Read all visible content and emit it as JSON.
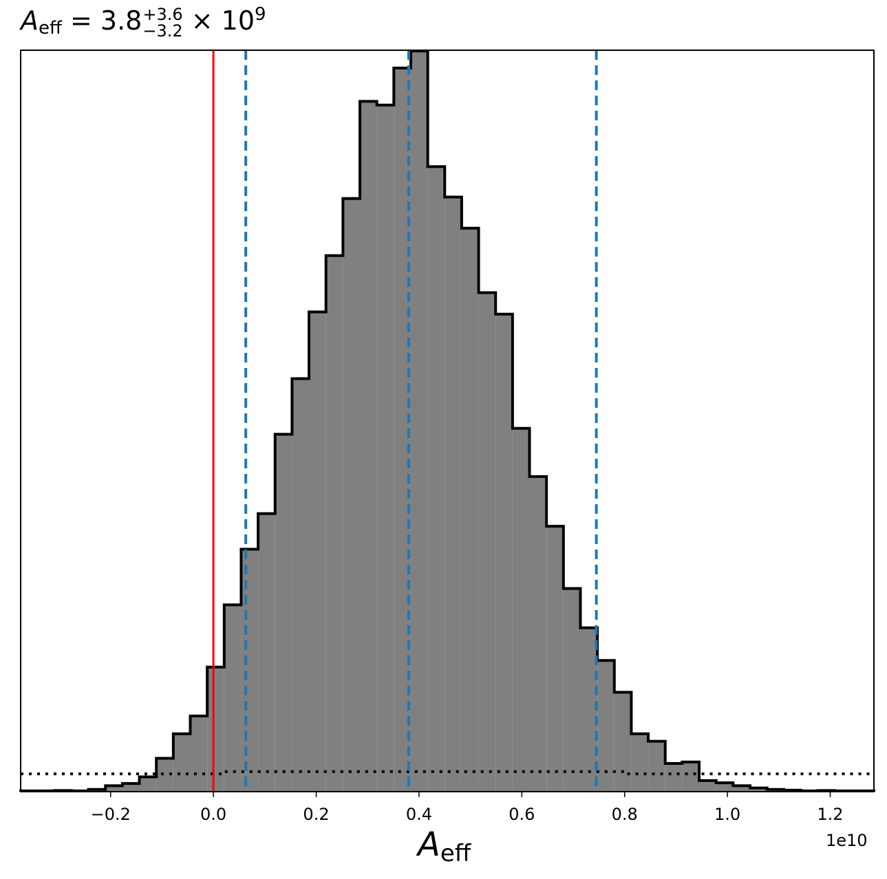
{
  "title": {
    "var": "A",
    "sub": "eff",
    "eq": " = 3.8",
    "sup": "+3.6",
    "subscript": "−3.2",
    "times": " × 10",
    "exp": "9"
  },
  "xlabel": {
    "var": "A",
    "sub": "eff"
  },
  "offset_text": "1e10",
  "chart_data": {
    "type": "histogram",
    "x_scale": 10000000000.0,
    "xlim": [
      -0.375,
      1.285
    ],
    "ylim": [
      0,
      1
    ],
    "xticks": [
      -0.2,
      0.0,
      0.2,
      0.4,
      0.6,
      0.8,
      1.0,
      1.2
    ],
    "xtick_labels": [
      "−0.2",
      "0.0",
      "0.2",
      "0.4",
      "0.6",
      "0.8",
      "1.0",
      "1.2"
    ],
    "bin_edges": [
      -0.375,
      -0.342,
      -0.309,
      -0.276,
      -0.243,
      -0.21,
      -0.177,
      -0.144,
      -0.111,
      -0.078,
      -0.045,
      -0.012,
      0.021,
      0.054,
      0.087,
      0.12,
      0.153,
      0.186,
      0.219,
      0.252,
      0.285,
      0.318,
      0.351,
      0.384,
      0.417,
      0.45,
      0.483,
      0.516,
      0.549,
      0.582,
      0.615,
      0.648,
      0.681,
      0.714,
      0.747,
      0.78,
      0.813,
      0.846,
      0.879,
      0.912,
      0.945,
      0.978,
      1.011,
      1.044,
      1.077,
      1.11,
      1.143,
      1.176,
      1.209,
      1.242,
      1.285
    ],
    "counts": [
      0.001,
      0.001,
      0.0015,
      0.001,
      0.003,
      0.008,
      0.011,
      0.02,
      0.045,
      0.078,
      0.102,
      0.168,
      0.252,
      0.327,
      0.375,
      0.482,
      0.557,
      0.647,
      0.723,
      0.8,
      0.931,
      0.926,
      0.976,
      0.999,
      0.843,
      0.802,
      0.76,
      0.673,
      0.644,
      0.49,
      0.425,
      0.358,
      0.274,
      0.221,
      0.177,
      0.134,
      0.078,
      0.068,
      0.038,
      0.04,
      0.015,
      0.012,
      0.008,
      0.005,
      0.003,
      0.002,
      0.001,
      0.0015,
      0.001,
      0.001
    ],
    "prior_level": 0.024,
    "prior_bump": 0.027,
    "median": 0.38,
    "lower": 0.063,
    "upper": 0.745,
    "truth": 0.0,
    "colors": {
      "fill": "#808080",
      "edge": "#000000",
      "quantiles": "#1f77b4",
      "truth": "#ff0000",
      "prior": "#000000"
    }
  }
}
